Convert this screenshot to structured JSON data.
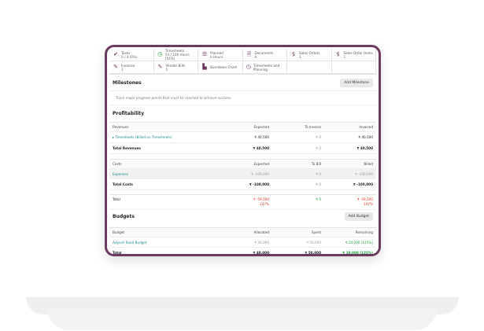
{
  "stats": [
    {
      "icon": "check-icon",
      "label": "Tasks",
      "value": "0 / 4 (0%)"
    },
    {
      "icon": "clock-icon",
      "label": "Timesheets",
      "value": "54 / 100 Hours (54%)"
    },
    {
      "icon": "list-icon",
      "label": "Planned",
      "value": "0 Hours"
    },
    {
      "icon": "document-icon",
      "label": "Documents",
      "value": "0"
    },
    {
      "icon": "dollar-icon",
      "label": "Sales Orders",
      "value": "1"
    },
    {
      "icon": "dollar-icon",
      "label": "Sales Order Items",
      "value": "1"
    },
    {
      "icon": "edit-icon",
      "label": "Invoices",
      "value": "1"
    },
    {
      "icon": "edit-icon",
      "label": "Vendor Bills",
      "value": "5"
    },
    {
      "icon": "chart-icon",
      "label": "Burndown Chart",
      "value": ""
    },
    {
      "icon": "clock-icon",
      "label": "Timesheets and Planning",
      "value": ""
    }
  ],
  "milestones": {
    "title": "Milestones",
    "button": "Add Milestone",
    "hint": "Track major progress points that must be reached to achieve success."
  },
  "profitability": {
    "title": "Profitability",
    "revenues_header": [
      "Revenues",
      "Expected",
      "To Invoice",
      "Invoiced"
    ],
    "revenue_rows": [
      [
        "Timesheets (Billed on Timesheets)",
        "₹ 40,500",
        "₹ 0",
        "₹ 40,500"
      ]
    ],
    "total_revenues": [
      "Total Revenues",
      "₹ 40,500",
      "₹ 0",
      "₹ 40,500"
    ],
    "costs_header": [
      "Costs",
      "Expected",
      "To Bill",
      "Billed"
    ],
    "cost_rows": [
      [
        "Expenses",
        "₹ -100,000",
        "₹ 0",
        "₹ -100,000"
      ]
    ],
    "total_costs": [
      "Total Costs",
      "₹ -100,000",
      "₹ 0",
      "₹ -100,000"
    ],
    "total": {
      "label": "Total",
      "expected": "₹ -59,500",
      "expected_pct": "-147%",
      "to_invoice": "₹ 0",
      "invoiced": "₹ -59,500",
      "invoiced_pct": "-147%"
    }
  },
  "budgets": {
    "title": "Budgets",
    "button": "Add Budget",
    "header": [
      "Budget",
      "Allocated",
      "Spent",
      "Remaining"
    ],
    "rows": [
      [
        "Aayush Road Budget",
        "₹ 40,000",
        "₹ 50,000",
        "₹ 10,000 (125%)"
      ]
    ],
    "total": [
      "Total",
      "₹ 40,000",
      "₹ 50,000",
      "₹ 10,000 (125%)"
    ]
  },
  "colors": {
    "frame": "#6b3a5e",
    "link": "#1a8a8a",
    "negative": "#d9362b",
    "positive": "#1c9c3a"
  }
}
